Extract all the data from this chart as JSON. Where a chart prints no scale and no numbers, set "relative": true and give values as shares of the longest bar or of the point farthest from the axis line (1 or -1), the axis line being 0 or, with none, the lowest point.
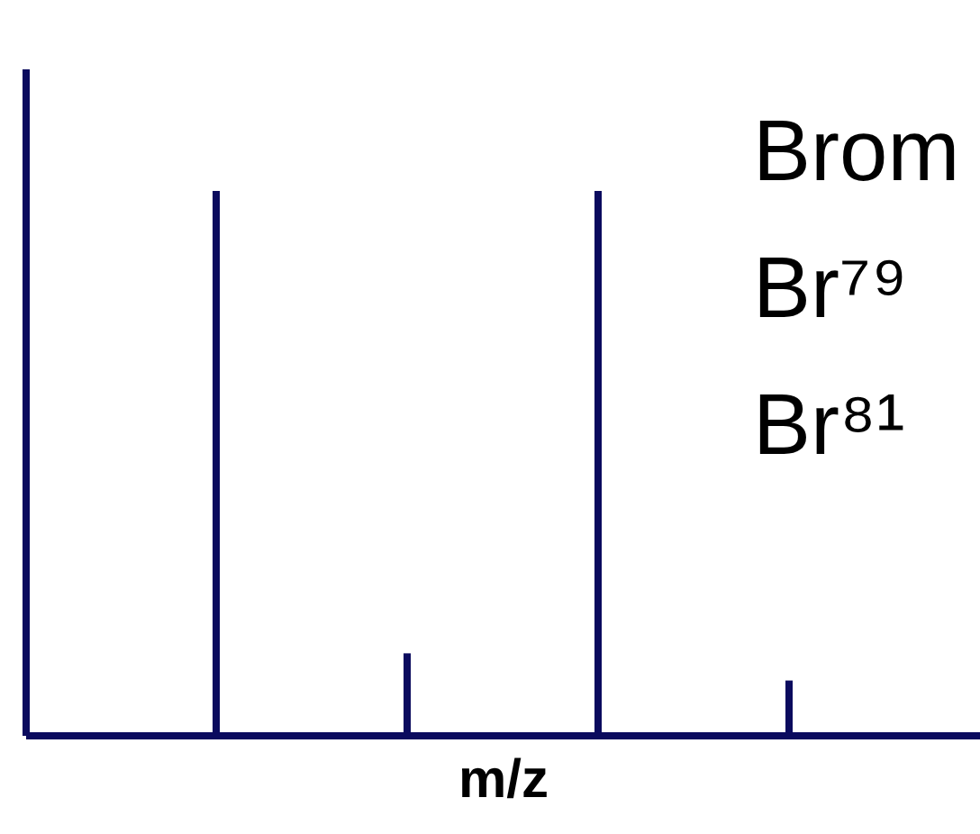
{
  "chart_data": {
    "type": "bar",
    "relative": true,
    "categories": [
      null,
      null,
      null,
      null
    ],
    "values": [
      1,
      0.15,
      1,
      0.1
    ],
    "color": "#0b0b5e",
    "xlabel": "m/z",
    "annotations": [
      "Brom",
      "Br⁷⁹",
      "Br⁸¹"
    ]
  }
}
